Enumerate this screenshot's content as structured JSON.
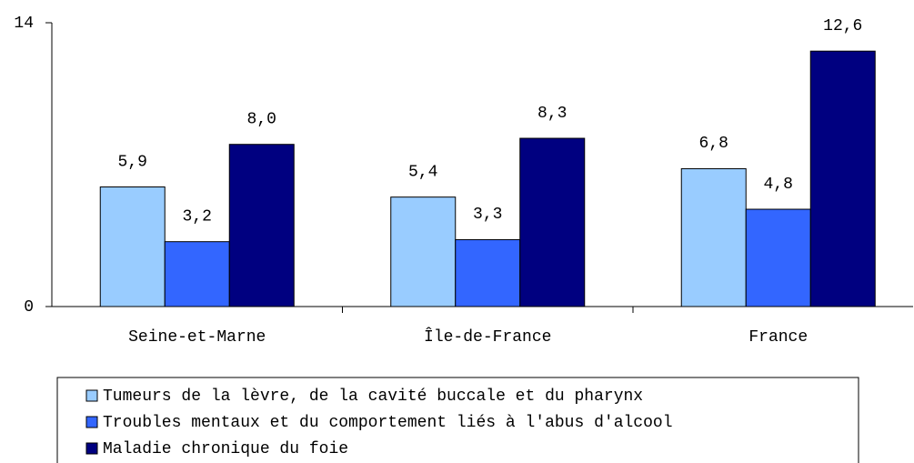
{
  "chart_data": {
    "type": "bar",
    "categories": [
      "Seine-et-Marne",
      "Île-de-France",
      "France"
    ],
    "series": [
      {
        "name": "Tumeurs de la lèvre, de la cavité buccale et du pharynx",
        "color": "#99ccff",
        "values": [
          5.9,
          5.4,
          6.8
        ],
        "value_labels": [
          "5,9",
          "5,4",
          "6,8"
        ]
      },
      {
        "name": "Troubles mentaux et du comportement liés à l'abus d'alcool",
        "color": "#3366ff",
        "values": [
          3.2,
          3.3,
          4.8
        ],
        "value_labels": [
          "3,2",
          "3,3",
          "4,8"
        ]
      },
      {
        "name": "Maladie chronique du foie",
        "color": "#000080",
        "values": [
          8.0,
          8.3,
          12.6
        ],
        "value_labels": [
          "8,0",
          "8,3",
          "12,6"
        ]
      }
    ],
    "ylim": [
      0,
      14
    ],
    "yticks": [
      0,
      14
    ],
    "grid": false
  }
}
